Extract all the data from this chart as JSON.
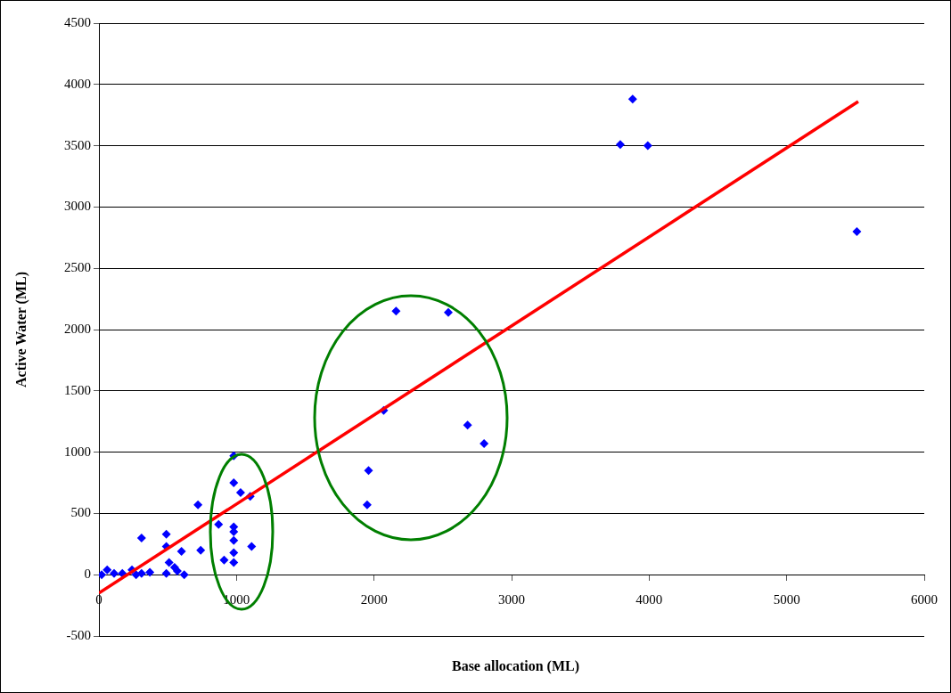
{
  "chart_data": {
    "type": "scatter",
    "xlabel": "Base allocation (ML)",
    "ylabel": "Active Water (ML)",
    "xlim": [
      0,
      6000
    ],
    "xticks": [
      0,
      1000,
      2000,
      3000,
      4000,
      5000,
      6000
    ],
    "ylim": [
      -500,
      4500
    ],
    "yticks": [
      -500,
      0,
      500,
      1000,
      1500,
      2000,
      2500,
      3000,
      3500,
      4000,
      4500
    ],
    "grid": "y",
    "legend": false,
    "marker": "diamond",
    "series": [
      {
        "color": "#0000ff",
        "x": [
          20,
          60,
          110,
          170,
          240,
          270,
          310,
          370,
          310,
          490,
          490,
          490,
          510,
          550,
          570,
          600,
          620,
          720,
          740,
          870,
          910,
          980,
          980,
          1030,
          1100,
          980,
          980,
          980,
          980,
          980,
          1110,
          1960,
          1950,
          2160,
          2540,
          2070,
          2680,
          2800,
          3790,
          3880,
          3990,
          5510
        ],
        "values": [
          0,
          40,
          10,
          10,
          40,
          0,
          10,
          20,
          300,
          330,
          230,
          10,
          100,
          60,
          30,
          190,
          0,
          570,
          200,
          410,
          120,
          970,
          750,
          670,
          640,
          390,
          350,
          280,
          180,
          100,
          230,
          850,
          570,
          2150,
          2140,
          1340,
          1220,
          1070,
          3510,
          3880,
          3500,
          2800
        ]
      },
      {
        "type": "line",
        "color": "#ff0000",
        "marker": "none",
        "x": [
          0,
          5520
        ],
        "values": [
          -150,
          3860
        ]
      }
    ]
  }
}
